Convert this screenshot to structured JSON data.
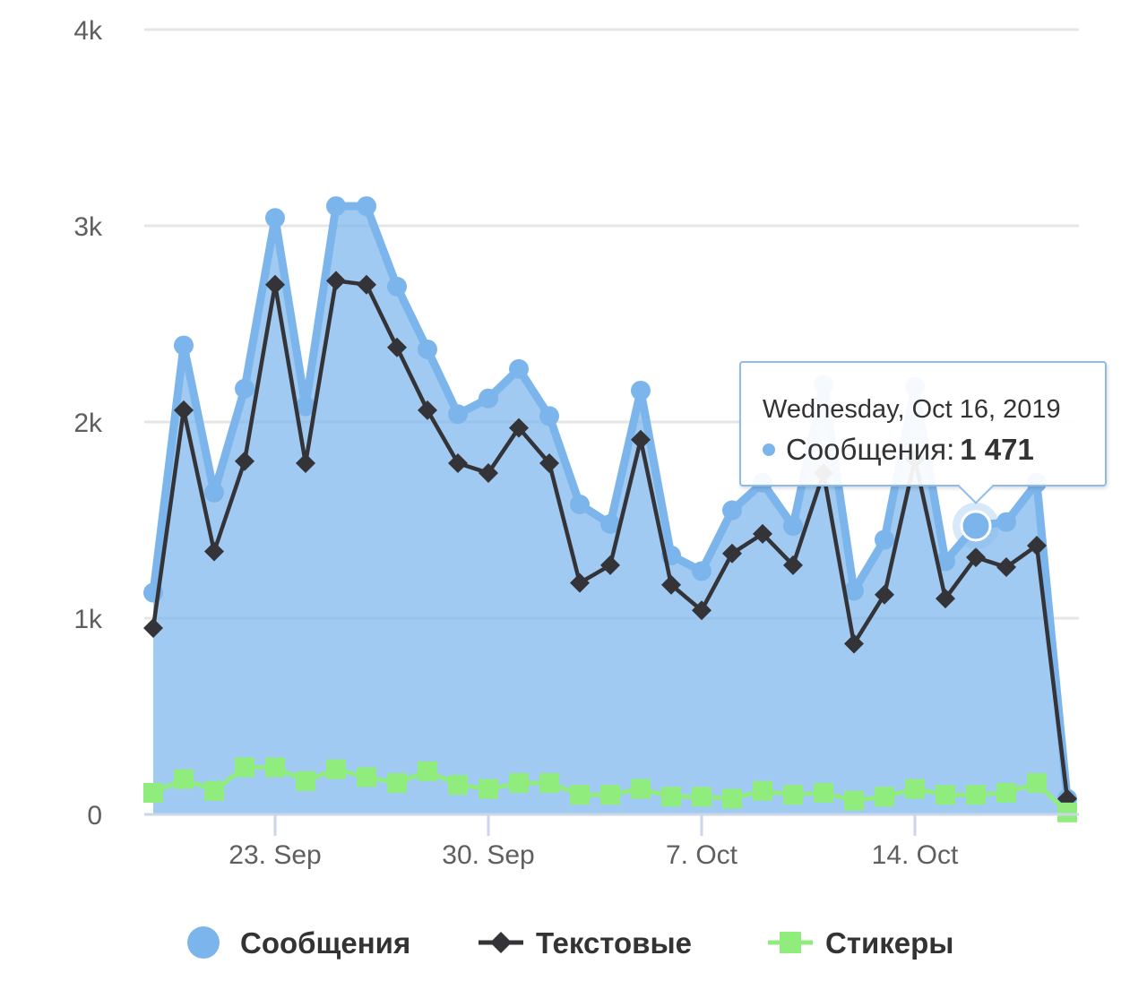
{
  "chart_data": {
    "type": "area",
    "x": [
      "2019-09-19",
      "2019-09-20",
      "2019-09-21",
      "2019-09-22",
      "2019-09-23",
      "2019-09-24",
      "2019-09-25",
      "2019-09-26",
      "2019-09-27",
      "2019-09-28",
      "2019-09-29",
      "2019-09-30",
      "2019-10-01",
      "2019-10-02",
      "2019-10-03",
      "2019-10-04",
      "2019-10-05",
      "2019-10-06",
      "2019-10-07",
      "2019-10-08",
      "2019-10-09",
      "2019-10-10",
      "2019-10-11",
      "2019-10-12",
      "2019-10-13",
      "2019-10-14",
      "2019-10-15",
      "2019-10-16",
      "2019-10-17",
      "2019-10-18",
      "2019-10-19"
    ],
    "x_ticks": [
      "23. Sep",
      "30. Sep",
      "7. Oct",
      "14. Oct"
    ],
    "x_tick_dates": [
      "2019-09-23",
      "2019-09-30",
      "2019-10-07",
      "2019-10-14"
    ],
    "y_ticks": [
      "0",
      "1k",
      "2k",
      "3k",
      "4k"
    ],
    "ylim": [
      0,
      4000
    ],
    "grid": true,
    "legend_position": "bottom",
    "series": [
      {
        "name": "Сообщения",
        "kind": "area",
        "color": "#7cb5ec",
        "marker": "circle",
        "values": [
          1130,
          2390,
          1640,
          2170,
          3040,
          2080,
          3100,
          3100,
          2690,
          2370,
          2040,
          2120,
          2270,
          2030,
          1580,
          1480,
          2160,
          1320,
          1240,
          1550,
          1690,
          1470,
          2190,
          1140,
          1400,
          2180,
          1290,
          1471,
          1490,
          1690,
          80
        ]
      },
      {
        "name": "Текстовые",
        "kind": "line",
        "color": "#333338",
        "marker": "diamond",
        "values": [
          950,
          2060,
          1340,
          1800,
          2700,
          1790,
          2720,
          2700,
          2380,
          2060,
          1790,
          1740,
          1970,
          1790,
          1180,
          1270,
          1910,
          1170,
          1040,
          1330,
          1430,
          1270,
          1740,
          870,
          1120,
          1810,
          1100,
          1310,
          1260,
          1370,
          80
        ]
      },
      {
        "name": "Стикеры",
        "kind": "line",
        "color": "#90ed7d",
        "marker": "square",
        "values": [
          110,
          180,
          120,
          240,
          240,
          170,
          230,
          190,
          160,
          220,
          150,
          130,
          160,
          160,
          100,
          100,
          130,
          90,
          90,
          80,
          120,
          100,
          110,
          70,
          90,
          130,
          100,
          100,
          110,
          160,
          10
        ]
      }
    ],
    "tooltip": {
      "date": "Wednesday, Oct 16, 2019",
      "series_label": "Сообщения",
      "separator": ":",
      "value": "1 471",
      "point_index": 27
    }
  }
}
